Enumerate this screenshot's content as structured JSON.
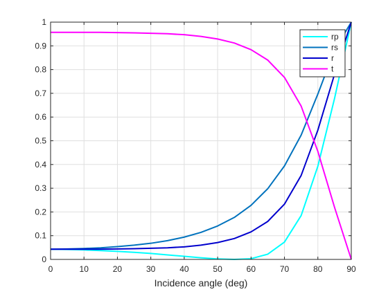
{
  "chart_data": {
    "type": "line",
    "title": "",
    "xlabel": "Incidence angle (deg)",
    "ylabel": "",
    "xlim": [
      0,
      90
    ],
    "ylim": [
      0,
      1
    ],
    "xticks": [
      0,
      10,
      20,
      30,
      40,
      50,
      60,
      70,
      80,
      90
    ],
    "xtick_labels": [
      "0",
      "10",
      "20",
      "30",
      "40",
      "50",
      "60",
      "70",
      "80",
      "90"
    ],
    "yticks": [
      0,
      0.1,
      0.2,
      0.3,
      0.4,
      0.5,
      0.6,
      0.7,
      0.8,
      0.9,
      1
    ],
    "ytick_labels": [
      "0",
      "0.1",
      "0.2",
      "0.3",
      "0.4",
      "0.5",
      "0.6",
      "0.7",
      "0.8",
      "0.9",
      "1"
    ],
    "grid": true,
    "legend_position": "top-right",
    "x": [
      0,
      5,
      10,
      15,
      20,
      25,
      30,
      35,
      40,
      45,
      50,
      55,
      60,
      65,
      70,
      75,
      80,
      85,
      90
    ],
    "series": [
      {
        "name": "rp",
        "color": "#00FFFF",
        "values": [
          0.043,
          0.042,
          0.04,
          0.037,
          0.034,
          0.03,
          0.025,
          0.019,
          0.013,
          0.007,
          0.002,
          0.0,
          0.003,
          0.022,
          0.073,
          0.185,
          0.393,
          0.679,
          1.0
        ]
      },
      {
        "name": "rs",
        "color": "#0072BD",
        "values": [
          0.043,
          0.044,
          0.046,
          0.049,
          0.054,
          0.06,
          0.068,
          0.079,
          0.094,
          0.114,
          0.141,
          0.177,
          0.228,
          0.298,
          0.394,
          0.524,
          0.697,
          0.883,
          1.0
        ]
      },
      {
        "name": "r",
        "color": "#0000CD",
        "values": [
          0.043,
          0.043,
          0.043,
          0.043,
          0.044,
          0.045,
          0.047,
          0.049,
          0.053,
          0.06,
          0.071,
          0.088,
          0.116,
          0.16,
          0.233,
          0.354,
          0.545,
          0.781,
          1.0
        ]
      },
      {
        "name": "t",
        "color": "#FF00FF",
        "values": [
          0.957,
          0.957,
          0.957,
          0.957,
          0.956,
          0.955,
          0.953,
          0.951,
          0.947,
          0.94,
          0.929,
          0.912,
          0.884,
          0.84,
          0.767,
          0.646,
          0.455,
          0.219,
          0.0
        ]
      }
    ]
  }
}
